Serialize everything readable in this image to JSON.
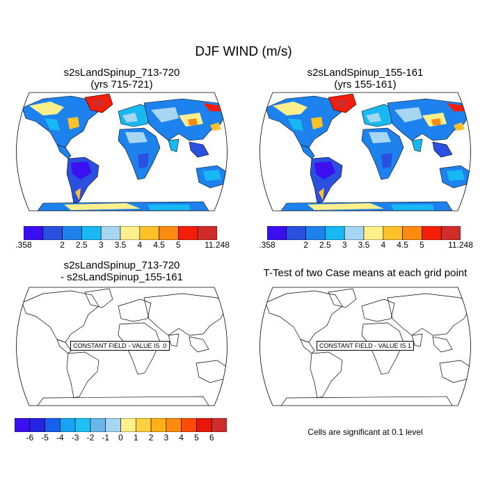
{
  "title": "DJF WIND (m/s)",
  "panels": {
    "top_left": {
      "title_line1": "s2sLandSpinup_713-720",
      "title_line2": "(yrs 715-721)"
    },
    "top_right": {
      "title_line1": "s2sLandSpinup_155-161",
      "title_line2": "(yrs 155-161)"
    },
    "bottom_left": {
      "title_line1": "s2sLandSpinup_713-720",
      "title_line2": "- s2sLandSpinup_155-161",
      "constant_label": "CONSTANT FIELD - VALUE IS .0"
    },
    "bottom_right": {
      "title_line1": "T-Test of two Case means at each grid point",
      "constant_label": "CONSTANT FIELD - VALUE IS 1"
    }
  },
  "colorbars": {
    "top": {
      "colors": [
        "#3a10f0",
        "#2a50e0",
        "#1e82ee",
        "#18b8f2",
        "#a6d6f2",
        "#fff08c",
        "#ffc028",
        "#ff8a10",
        "#f41e08",
        "#d02c2c"
      ],
      "labels": [
        ".358",
        "",
        "2",
        "2.5",
        "3",
        "3.5",
        "4",
        "4.5",
        "5",
        "",
        "11.248"
      ]
    },
    "bottom": {
      "colors": [
        "#3a10f0",
        "#2424e0",
        "#1660ec",
        "#18a2f0",
        "#20c0f4",
        "#68b6ec",
        "#a6d6f2",
        "#fff08c",
        "#ffd040",
        "#ffb018",
        "#ff8a10",
        "#ff4a08",
        "#e81808",
        "#d02c2c"
      ],
      "labels": [
        "-6",
        "-5",
        "-4",
        "-3",
        "-2",
        "-1",
        "0",
        "1",
        "2",
        "3",
        "4",
        "5",
        "6"
      ]
    }
  },
  "significance_note": "Cells are significant at 0.1 level"
}
